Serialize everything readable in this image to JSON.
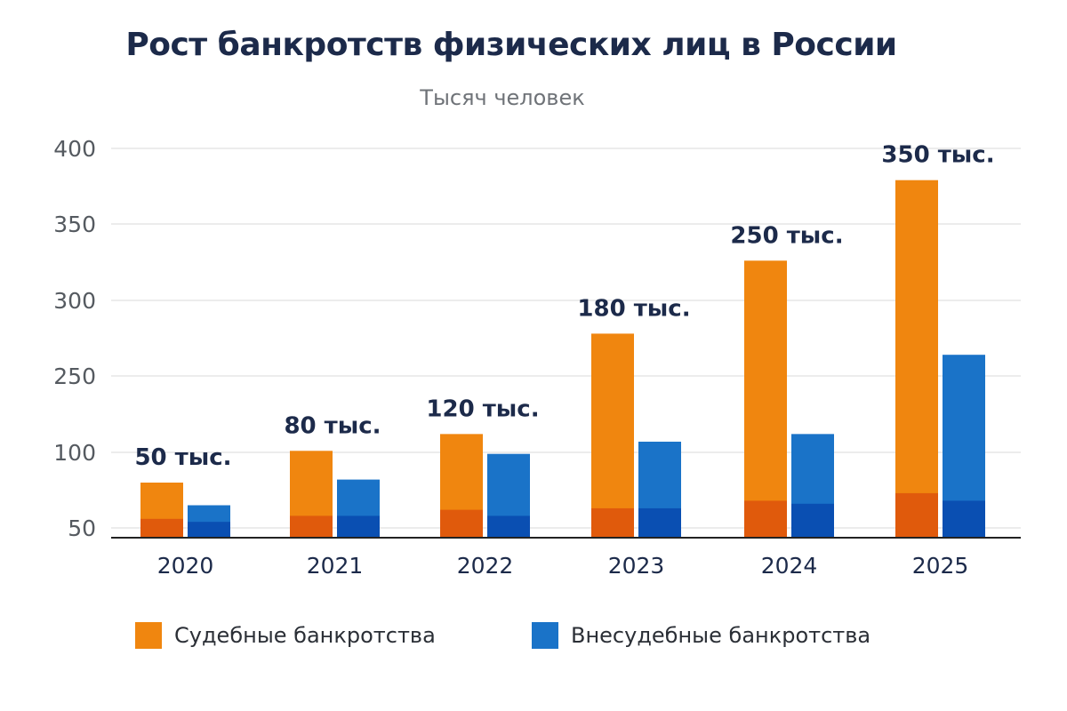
{
  "chart_data": {
    "type": "bar",
    "title": "Рост банкротств физических лиц в России",
    "subtitle": "Тысяч человек",
    "categories": [
      "2020",
      "2021",
      "2022",
      "2023",
      "2024",
      "2025"
    ],
    "y_tick_labels": [
      "400",
      "350",
      "300",
      "250",
      "100",
      "50"
    ],
    "grid": true,
    "legend_position": "bottom",
    "series": [
      {
        "name": "Судебные банкротства",
        "color": "#f0860f",
        "base_color": "#e05a0c",
        "values": [
          80,
          103,
          136,
          278,
          326,
          379
        ],
        "base_values": [
          56,
          58,
          62,
          63,
          68,
          73
        ]
      },
      {
        "name": "Внесудебные банкротства",
        "color": "#1a73c8",
        "base_color": "#0a4fb2",
        "values": [
          65,
          82,
          99,
          121,
          136,
          264
        ],
        "base_values": [
          54,
          58,
          58,
          63,
          66,
          68
        ]
      }
    ],
    "annotations": [
      "50 тыс.",
      "80 тыс.",
      "120 тыс.",
      "180 тыс.",
      "250 тыс.",
      "350 тыс."
    ]
  }
}
